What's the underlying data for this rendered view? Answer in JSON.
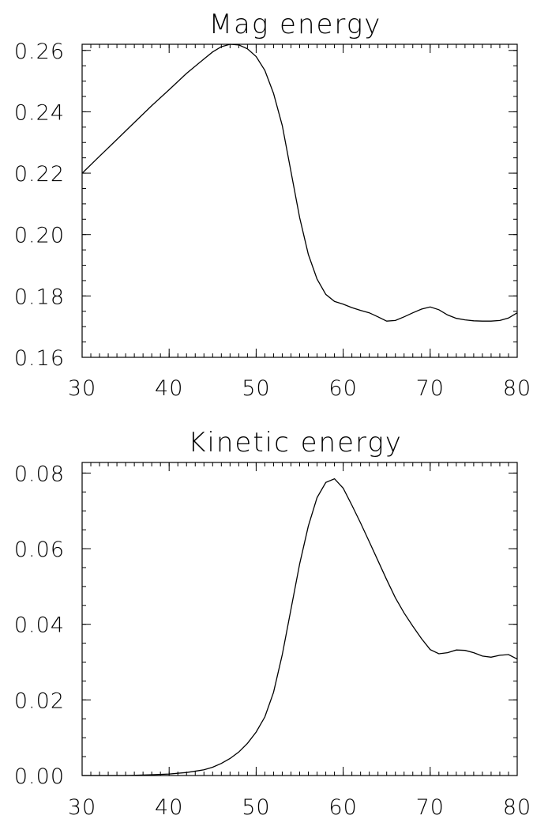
{
  "chart_data": [
    {
      "type": "line",
      "title": "Mag energy",
      "xlabel": "",
      "ylabel": "",
      "xlim": [
        30,
        80
      ],
      "ylim": [
        0.16,
        0.262
      ],
      "xticks": [
        30,
        40,
        50,
        60,
        70,
        80
      ],
      "xtick_labels": [
        "30",
        "40",
        "50",
        "60",
        "70",
        "80"
      ],
      "yticks": [
        0.16,
        0.18,
        0.2,
        0.22,
        0.24,
        0.26
      ],
      "ytick_labels": [
        "0.16",
        "0.18",
        "0.20",
        "0.22",
        "0.24",
        "0.26"
      ],
      "x_minor_step": 1,
      "y_minor_step": 0.005,
      "grid": false,
      "color": "#000000",
      "series": [
        {
          "x": [
            30,
            32,
            34,
            36,
            38,
            40,
            42,
            44,
            45,
            46,
            47,
            48,
            49,
            50,
            51,
            52,
            53,
            54,
            55,
            56,
            57,
            58,
            59,
            60,
            61,
            62,
            63,
            64,
            65,
            66,
            67,
            68,
            69,
            70,
            71,
            72,
            73,
            74,
            75,
            76,
            77,
            78,
            79,
            80
          ],
          "y": [
            0.22,
            0.2255,
            0.231,
            0.2365,
            0.242,
            0.2472,
            0.2525,
            0.2572,
            0.2595,
            0.2612,
            0.262,
            0.2618,
            0.2605,
            0.258,
            0.2535,
            0.246,
            0.2355,
            0.2205,
            0.2055,
            0.1935,
            0.1855,
            0.1805,
            0.1782,
            0.1773,
            0.1762,
            0.1753,
            0.1745,
            0.1732,
            0.1718,
            0.172,
            0.1732,
            0.1745,
            0.1757,
            0.1764,
            0.1755,
            0.1738,
            0.1727,
            0.1722,
            0.1719,
            0.1718,
            0.1718,
            0.172,
            0.1728,
            0.1745
          ]
        }
      ]
    },
    {
      "type": "line",
      "title": "Kinetic energy",
      "xlabel": "",
      "ylabel": "",
      "xlim": [
        30,
        80
      ],
      "ylim": [
        0.0,
        0.0828
      ],
      "xticks": [
        30,
        40,
        50,
        60,
        70,
        80
      ],
      "xtick_labels": [
        "30",
        "40",
        "50",
        "60",
        "70",
        "80"
      ],
      "yticks": [
        0.0,
        0.02,
        0.04,
        0.06,
        0.08
      ],
      "ytick_labels": [
        "0.00",
        "0.02",
        "0.04",
        "0.06",
        "0.08"
      ],
      "x_minor_step": 1,
      "y_minor_step": 0.005,
      "grid": false,
      "color": "#000000",
      "series": [
        {
          "x": [
            30,
            35,
            38,
            40,
            42,
            44,
            45,
            46,
            47,
            48,
            49,
            50,
            51,
            52,
            53,
            54,
            55,
            56,
            57,
            58,
            59,
            60,
            61,
            62,
            63,
            64,
            65,
            66,
            67,
            68,
            69,
            70,
            71,
            72,
            73,
            74,
            75,
            76,
            77,
            78,
            79,
            80
          ],
          "y": [
            0.0,
            0.0,
            0.0002,
            0.0004,
            0.0008,
            0.0015,
            0.0022,
            0.0032,
            0.0045,
            0.0062,
            0.0085,
            0.0115,
            0.0155,
            0.022,
            0.032,
            0.044,
            0.056,
            0.066,
            0.0735,
            0.0775,
            0.0785,
            0.076,
            0.0715,
            0.0668,
            0.0618,
            0.0568,
            0.0518,
            0.047,
            0.043,
            0.0395,
            0.0362,
            0.0333,
            0.0322,
            0.0325,
            0.0332,
            0.0331,
            0.0325,
            0.0316,
            0.0313,
            0.0318,
            0.032,
            0.0308
          ]
        }
      ]
    }
  ]
}
